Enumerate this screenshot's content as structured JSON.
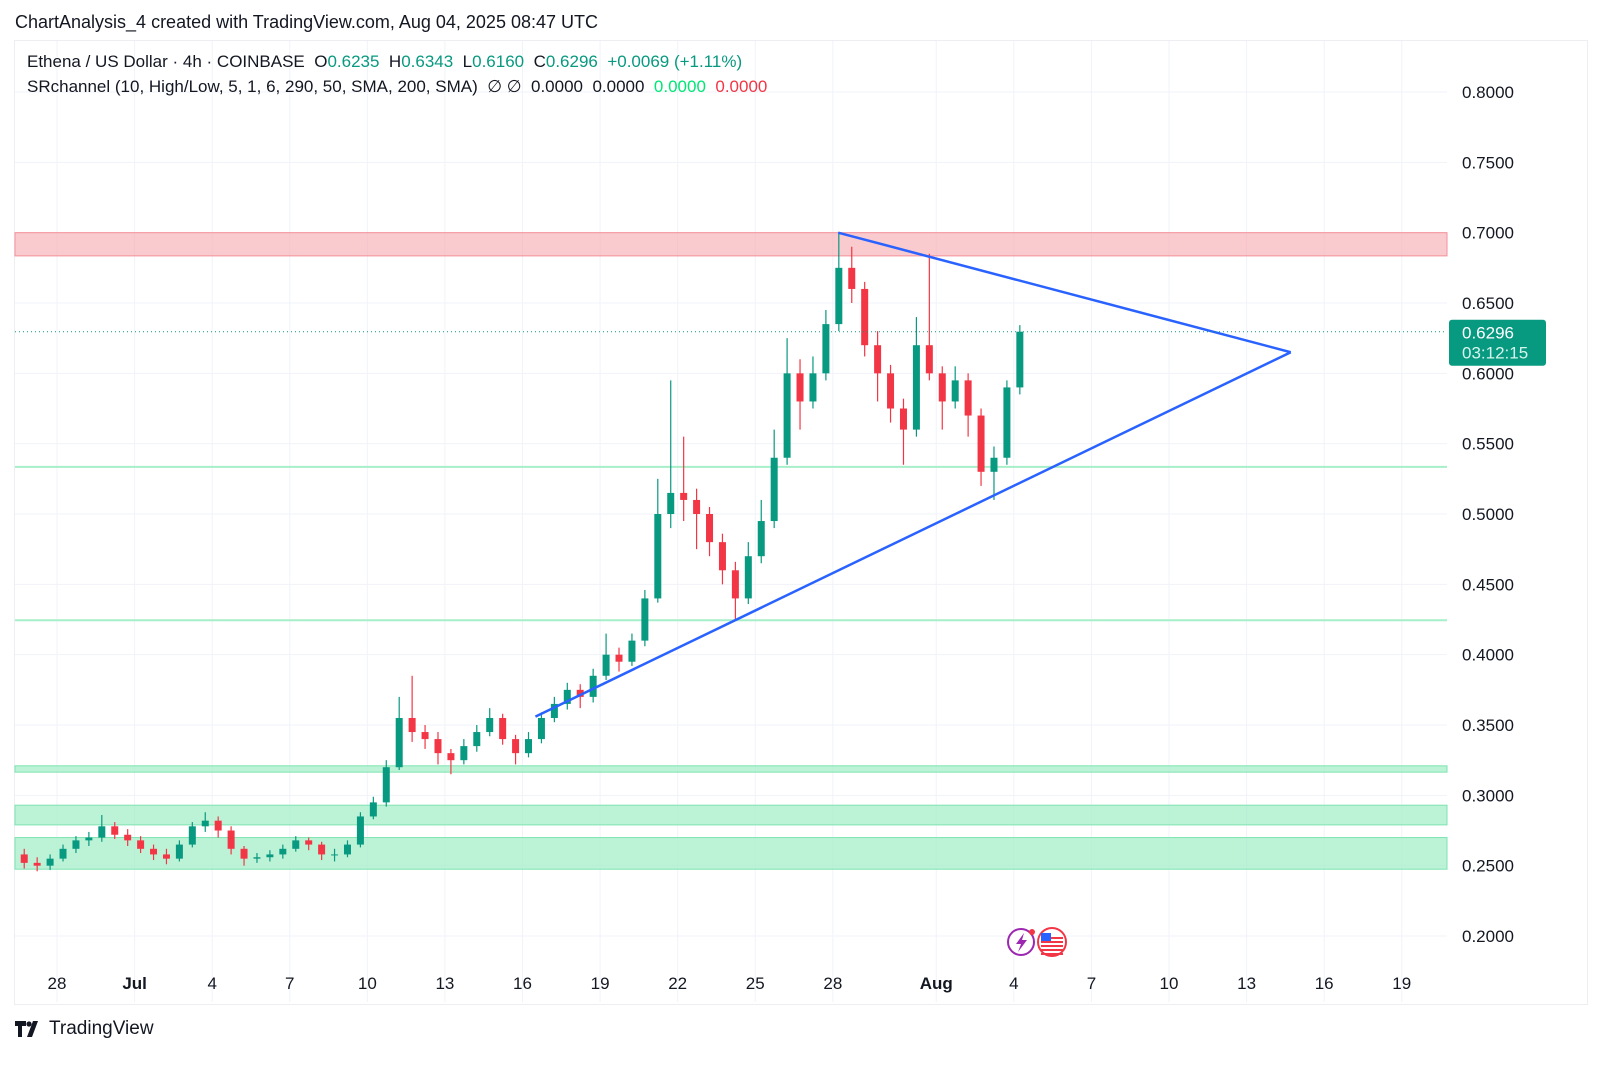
{
  "caption": "ChartAnalysis_4 created with TradingView.com, Aug 04, 2025 08:47 UTC",
  "legend": {
    "symbol": "Ethena / US Dollar · 4h · COINBASE",
    "o_label": "O",
    "o": "0.6235",
    "h_label": "H",
    "h": "0.6343",
    "l_label": "L",
    "l": "0.6160",
    "c_label": "C",
    "c": "0.6296",
    "change": "+0.0069 (+1.11%)",
    "indicator": "SRchannel (10, High/Low, 5, 1, 6, 290, 50, SMA, 200, SMA)",
    "ind_icons": "∅ ∅",
    "ind_v1": "0.0000",
    "ind_v2": "0.0000",
    "ind_v3": "0.0000",
    "ind_v4": "0.0000"
  },
  "logo": "TradingView",
  "colors": {
    "up": "#089981",
    "down": "#f23645",
    "trend": "#2962ff",
    "resistance": "#f7a8ae",
    "support": "#a6efc9",
    "ind_green": "#00e676",
    "ind_red": "#f23645"
  },
  "icons": [
    "lightning-icon",
    "us-flag-icon"
  ],
  "chart_data": {
    "type": "candlestick",
    "ylim": [
      0.18,
      0.83
    ],
    "y_ticks": [
      "0.8000",
      "0.7500",
      "0.7000",
      "0.6500",
      "0.6000",
      "0.5500",
      "0.5000",
      "0.4500",
      "0.4000",
      "0.3500",
      "0.3000",
      "0.2500",
      "0.2000"
    ],
    "x_ticks": [
      [
        "2025-06-28",
        "28"
      ],
      [
        "2025-07-01",
        "Jul"
      ],
      [
        "2025-07-04",
        "4"
      ],
      [
        "2025-07-07",
        "7"
      ],
      [
        "2025-07-10",
        "10"
      ],
      [
        "2025-07-13",
        "13"
      ],
      [
        "2025-07-16",
        "16"
      ],
      [
        "2025-07-19",
        "19"
      ],
      [
        "2025-07-22",
        "22"
      ],
      [
        "2025-07-25",
        "25"
      ],
      [
        "2025-07-28",
        "28"
      ],
      [
        "2025-08-01",
        "Aug"
      ],
      [
        "2025-08-04",
        "4"
      ],
      [
        "2025-08-07",
        "7"
      ],
      [
        "2025-08-10",
        "10"
      ],
      [
        "2025-08-13",
        "13"
      ],
      [
        "2025-08-16",
        "16"
      ],
      [
        "2025-08-19",
        "19"
      ]
    ],
    "xlim": [
      "2025-06-26T09:00",
      "2025-08-20T18:00"
    ],
    "last_price": "0.6296",
    "countdown": "03:12:15",
    "zones": [
      {
        "kind": "resistance",
        "from": 0.6835,
        "to": 0.7
      },
      {
        "kind": "support",
        "from": 0.5335,
        "to": 0.5335
      },
      {
        "kind": "support",
        "from": 0.4245,
        "to": 0.4245
      },
      {
        "kind": "support",
        "from": 0.3165,
        "to": 0.321
      },
      {
        "kind": "support",
        "from": 0.279,
        "to": 0.293
      },
      {
        "kind": "support",
        "from": 0.2475,
        "to": 0.27
      }
    ],
    "trendlines": [
      {
        "from": [
          "2025-07-28T05:00",
          0.7
        ],
        "to": [
          "2025-08-14T17:00",
          0.615
        ]
      },
      {
        "from": [
          "2025-07-16T12:00",
          0.356
        ],
        "to": [
          "2025-08-14T17:00",
          0.615
        ]
      }
    ],
    "candles": [
      [
        "2025-06-26T12:00",
        0.258,
        0.262,
        0.248,
        0.252
      ],
      [
        "2025-06-27T00:00",
        0.252,
        0.256,
        0.246,
        0.25
      ],
      [
        "2025-06-27T12:00",
        0.25,
        0.258,
        0.247,
        0.255
      ],
      [
        "2025-06-28T00:00",
        0.255,
        0.265,
        0.253,
        0.262
      ],
      [
        "2025-06-28T12:00",
        0.262,
        0.271,
        0.259,
        0.268
      ],
      [
        "2025-06-29T00:00",
        0.268,
        0.274,
        0.264,
        0.27
      ],
      [
        "2025-06-29T12:00",
        0.27,
        0.286,
        0.267,
        0.278
      ],
      [
        "2025-06-30T00:00",
        0.278,
        0.281,
        0.269,
        0.272
      ],
      [
        "2025-06-30T12:00",
        0.272,
        0.276,
        0.264,
        0.268
      ],
      [
        "2025-07-01T00:00",
        0.268,
        0.271,
        0.259,
        0.262
      ],
      [
        "2025-07-01T12:00",
        0.262,
        0.265,
        0.254,
        0.258
      ],
      [
        "2025-07-02T00:00",
        0.258,
        0.262,
        0.251,
        0.255
      ],
      [
        "2025-07-02T12:00",
        0.255,
        0.268,
        0.253,
        0.265
      ],
      [
        "2025-07-03T00:00",
        0.265,
        0.281,
        0.263,
        0.278
      ],
      [
        "2025-07-03T12:00",
        0.278,
        0.288,
        0.274,
        0.282
      ],
      [
        "2025-07-04T00:00",
        0.282,
        0.285,
        0.27,
        0.275
      ],
      [
        "2025-07-04T12:00",
        0.275,
        0.278,
        0.258,
        0.262
      ],
      [
        "2025-07-05T00:00",
        0.262,
        0.264,
        0.25,
        0.255
      ],
      [
        "2025-07-05T12:00",
        0.255,
        0.259,
        0.252,
        0.256
      ],
      [
        "2025-07-06T00:00",
        0.256,
        0.261,
        0.253,
        0.258
      ],
      [
        "2025-07-06T12:00",
        0.258,
        0.265,
        0.255,
        0.262
      ],
      [
        "2025-07-07T00:00",
        0.262,
        0.271,
        0.26,
        0.268
      ],
      [
        "2025-07-07T12:00",
        0.268,
        0.27,
        0.261,
        0.265
      ],
      [
        "2025-07-08T00:00",
        0.265,
        0.267,
        0.254,
        0.258
      ],
      [
        "2025-07-08T12:00",
        0.258,
        0.262,
        0.253,
        0.258
      ],
      [
        "2025-07-09T00:00",
        0.258,
        0.268,
        0.256,
        0.265
      ],
      [
        "2025-07-09T12:00",
        0.265,
        0.288,
        0.263,
        0.285
      ],
      [
        "2025-07-10T00:00",
        0.285,
        0.299,
        0.283,
        0.295
      ],
      [
        "2025-07-10T12:00",
        0.295,
        0.325,
        0.292,
        0.32
      ],
      [
        "2025-07-11T00:00",
        0.32,
        0.37,
        0.318,
        0.355
      ],
      [
        "2025-07-11T12:00",
        0.355,
        0.385,
        0.338,
        0.345
      ],
      [
        "2025-07-12T00:00",
        0.345,
        0.35,
        0.333,
        0.34
      ],
      [
        "2025-07-12T12:00",
        0.34,
        0.345,
        0.322,
        0.33
      ],
      [
        "2025-07-13T00:00",
        0.33,
        0.333,
        0.315,
        0.325
      ],
      [
        "2025-07-13T12:00",
        0.325,
        0.34,
        0.322,
        0.335
      ],
      [
        "2025-07-14T00:00",
        0.335,
        0.35,
        0.331,
        0.345
      ],
      [
        "2025-07-14T12:00",
        0.345,
        0.362,
        0.342,
        0.355
      ],
      [
        "2025-07-15T00:00",
        0.355,
        0.358,
        0.336,
        0.34
      ],
      [
        "2025-07-15T12:00",
        0.34,
        0.343,
        0.322,
        0.33
      ],
      [
        "2025-07-16T00:00",
        0.33,
        0.345,
        0.327,
        0.34
      ],
      [
        "2025-07-16T12:00",
        0.34,
        0.359,
        0.337,
        0.355
      ],
      [
        "2025-07-17T00:00",
        0.355,
        0.37,
        0.352,
        0.365
      ],
      [
        "2025-07-17T12:00",
        0.365,
        0.38,
        0.361,
        0.375
      ],
      [
        "2025-07-18T00:00",
        0.375,
        0.379,
        0.362,
        0.37
      ],
      [
        "2025-07-18T12:00",
        0.37,
        0.39,
        0.366,
        0.385
      ],
      [
        "2025-07-19T00:00",
        0.385,
        0.415,
        0.382,
        0.4
      ],
      [
        "2025-07-19T12:00",
        0.4,
        0.405,
        0.388,
        0.395
      ],
      [
        "2025-07-20T00:00",
        0.395,
        0.415,
        0.392,
        0.41
      ],
      [
        "2025-07-20T12:00",
        0.41,
        0.446,
        0.406,
        0.44
      ],
      [
        "2025-07-21T00:00",
        0.44,
        0.525,
        0.437,
        0.5
      ],
      [
        "2025-07-21T12:00",
        0.5,
        0.595,
        0.49,
        0.515
      ],
      [
        "2025-07-22T00:00",
        0.515,
        0.555,
        0.495,
        0.51
      ],
      [
        "2025-07-22T12:00",
        0.51,
        0.518,
        0.475,
        0.5
      ],
      [
        "2025-07-23T00:00",
        0.5,
        0.505,
        0.47,
        0.48
      ],
      [
        "2025-07-23T12:00",
        0.48,
        0.486,
        0.45,
        0.46
      ],
      [
        "2025-07-24T00:00",
        0.46,
        0.466,
        0.425,
        0.44
      ],
      [
        "2025-07-24T12:00",
        0.44,
        0.48,
        0.436,
        0.47
      ],
      [
        "2025-07-25T00:00",
        0.47,
        0.51,
        0.465,
        0.495
      ],
      [
        "2025-07-25T12:00",
        0.495,
        0.56,
        0.49,
        0.54
      ],
      [
        "2025-07-26T00:00",
        0.54,
        0.625,
        0.535,
        0.6
      ],
      [
        "2025-07-26T12:00",
        0.6,
        0.61,
        0.56,
        0.58
      ],
      [
        "2025-07-27T00:00",
        0.58,
        0.612,
        0.575,
        0.6
      ],
      [
        "2025-07-27T12:00",
        0.6,
        0.645,
        0.595,
        0.635
      ],
      [
        "2025-07-28T00:00",
        0.635,
        0.7,
        0.63,
        0.675
      ],
      [
        "2025-07-28T12:00",
        0.675,
        0.69,
        0.65,
        0.66
      ],
      [
        "2025-07-29T00:00",
        0.66,
        0.665,
        0.612,
        0.62
      ],
      [
        "2025-07-29T12:00",
        0.62,
        0.63,
        0.58,
        0.6
      ],
      [
        "2025-07-30T00:00",
        0.6,
        0.606,
        0.565,
        0.575
      ],
      [
        "2025-07-30T12:00",
        0.575,
        0.582,
        0.535,
        0.56
      ],
      [
        "2025-07-31T00:00",
        0.56,
        0.64,
        0.555,
        0.62
      ],
      [
        "2025-07-31T12:00",
        0.62,
        0.685,
        0.595,
        0.6
      ],
      [
        "2025-08-01T00:00",
        0.6,
        0.605,
        0.56,
        0.58
      ],
      [
        "2025-08-01T12:00",
        0.58,
        0.605,
        0.575,
        0.595
      ],
      [
        "2025-08-02T00:00",
        0.595,
        0.6,
        0.555,
        0.57
      ],
      [
        "2025-08-02T12:00",
        0.57,
        0.575,
        0.52,
        0.53
      ],
      [
        "2025-08-03T00:00",
        0.53,
        0.548,
        0.51,
        0.54
      ],
      [
        "2025-08-03T12:00",
        0.54,
        0.595,
        0.535,
        0.59
      ],
      [
        "2025-08-04T00:00",
        0.59,
        0.6343,
        0.585,
        0.6296
      ]
    ]
  }
}
